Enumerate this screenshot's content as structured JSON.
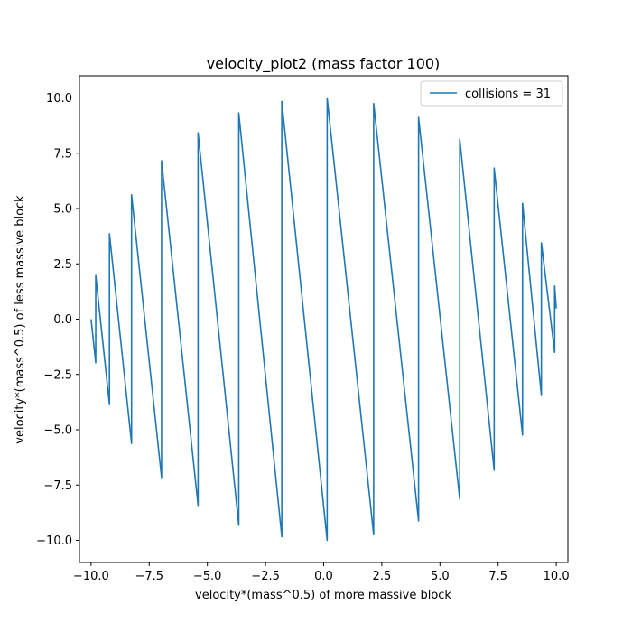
{
  "chart_data": {
    "type": "line",
    "title": "velocity_plot2 (mass factor 100)",
    "xlabel": "velocity*(mass^0.5) of more massive block",
    "ylabel": "velocity*(mass^0.5) of less massive block",
    "xlim": [
      -10.5,
      10.5
    ],
    "ylim": [
      -11,
      11
    ],
    "xticks": [
      -10.0,
      -7.5,
      -5.0,
      -2.5,
      0.0,
      2.5,
      5.0,
      7.5,
      10.0
    ],
    "xtick_labels": [
      "−10.0",
      "−7.5",
      "−5.0",
      "−2.5",
      "0.0",
      "2.5",
      "5.0",
      "7.5",
      "10.0"
    ],
    "yticks": [
      -10.0,
      -7.5,
      -5.0,
      -2.5,
      0.0,
      2.5,
      5.0,
      7.5,
      10.0
    ],
    "ytick_labels": [
      "−10.0",
      "−7.5",
      "−5.0",
      "−2.5",
      "0.0",
      "2.5",
      "5.0",
      "7.5",
      "10.0"
    ],
    "grid": false,
    "legend_position": "top-right",
    "colors": {
      "series": "#1f77b4",
      "axes": "#000000",
      "background": "#ffffff"
    },
    "series": [
      {
        "name": "collisions = 31",
        "x": [
          -10.0,
          -9.8,
          -9.8,
          -9.21,
          -9.21,
          -8.26,
          -8.26,
          -6.97,
          -6.97,
          -5.4,
          -5.4,
          -3.65,
          -3.65,
          -1.8,
          -1.8,
          0.15,
          0.15,
          2.15,
          2.15,
          4.08,
          4.08,
          5.85,
          5.85,
          7.33,
          7.33,
          8.55,
          8.55,
          9.36,
          9.36,
          9.93,
          9.93,
          10.0
        ],
        "y": [
          0.0,
          -1.97,
          1.97,
          -3.86,
          3.86,
          -5.62,
          5.62,
          -7.16,
          7.16,
          -8.42,
          8.42,
          -9.32,
          9.32,
          -9.84,
          9.84,
          -10.0,
          10.0,
          -9.75,
          9.75,
          -9.12,
          9.12,
          -8.14,
          8.14,
          -6.83,
          6.83,
          -5.24,
          5.24,
          -3.45,
          3.45,
          -1.5,
          1.5,
          0.48
        ]
      }
    ]
  }
}
